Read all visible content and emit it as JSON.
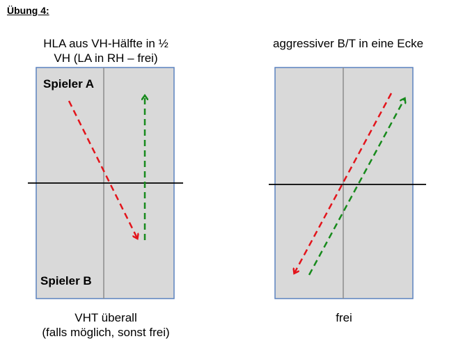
{
  "heading": "Übung 4:",
  "left": {
    "title_line1": "HLA aus VH-Hälfte in ½",
    "title_line2": "VH (LA in RH – frei)",
    "top_player": "Spieler A",
    "bottom_player": "Spieler B",
    "caption_line1": "VHT überall",
    "caption_line2": "(falls möglich, sonst frei)"
  },
  "right": {
    "title": "aggressiver B/T in eine Ecke",
    "caption": "frei"
  },
  "colors": {
    "court_fill": "#d9d9d9",
    "court_border": "#5b82bf",
    "red_arrow": "#e3141b",
    "green_arrow": "#178a1c",
    "center_line": "#8c8c8c"
  }
}
